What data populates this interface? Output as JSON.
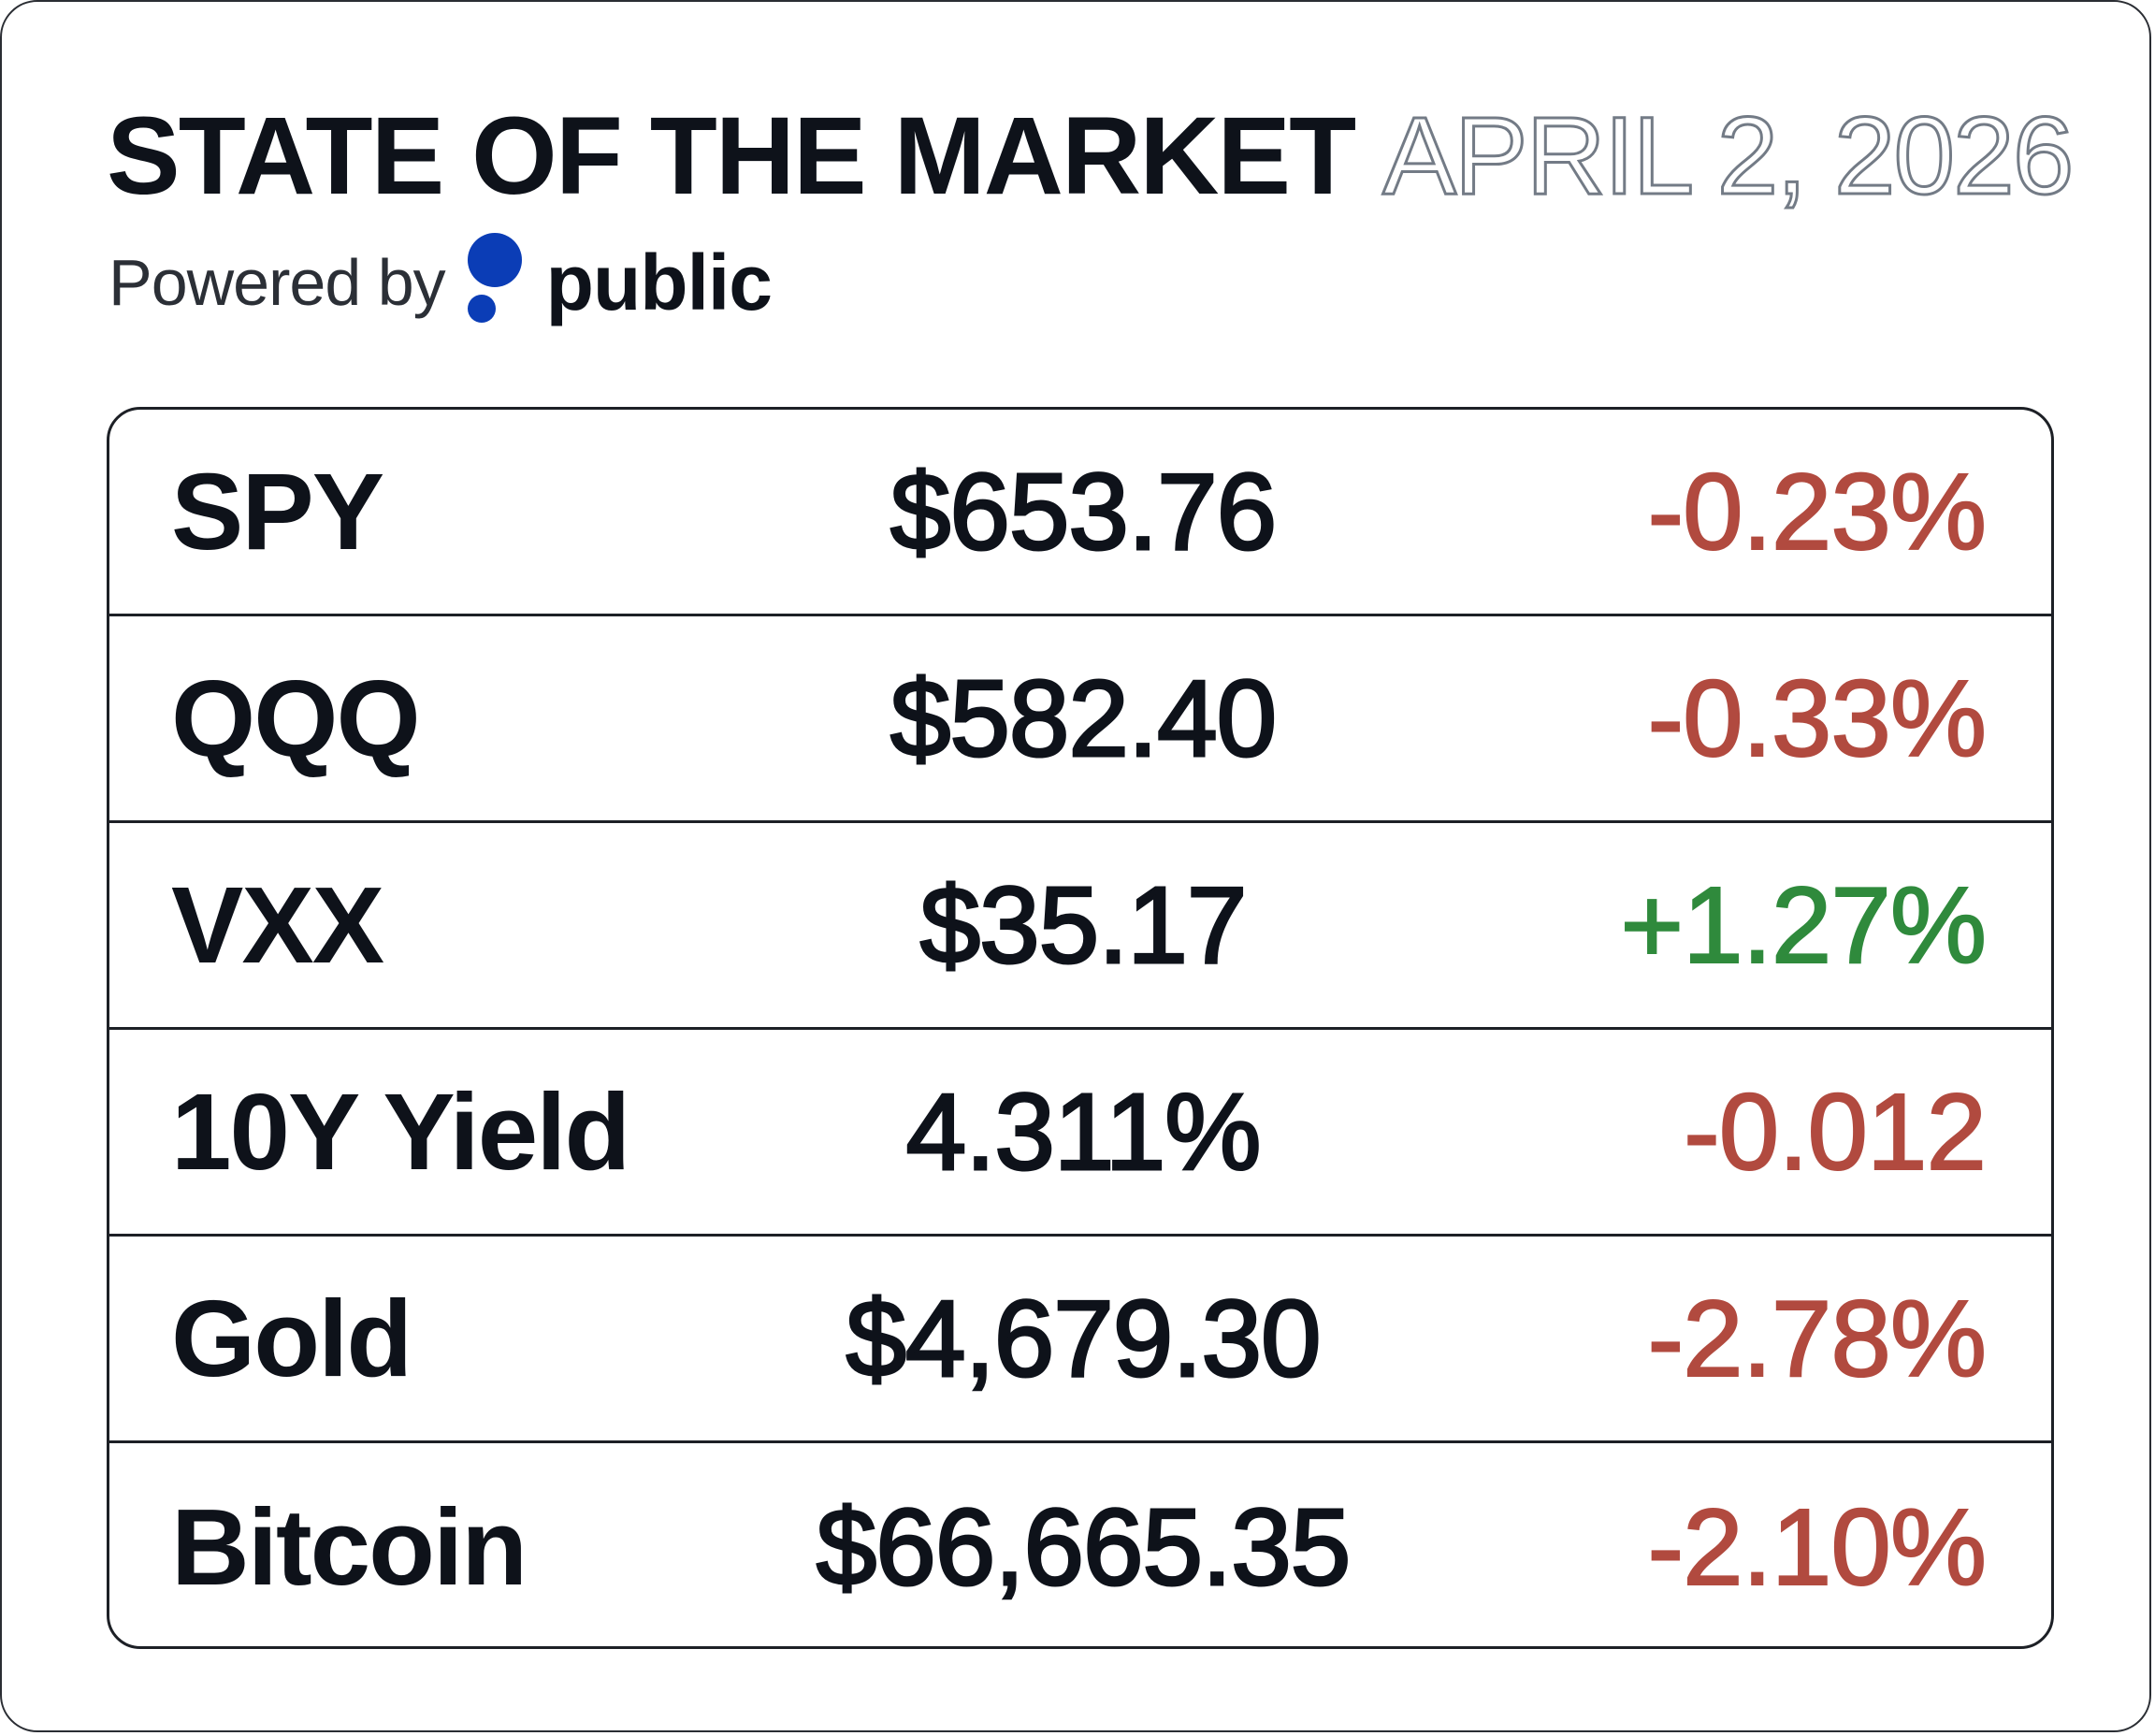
{
  "header": {
    "title": "STATE OF THE MARKET",
    "date": "APRIL 2, 2026",
    "powered_by": "Powered by",
    "brand": "public"
  },
  "colors": {
    "negative": "#b14a3f",
    "positive": "#2f8a3c",
    "brand_blue": "#0b3db6"
  },
  "rows": [
    {
      "name": "SPY",
      "value": "$653.76",
      "change": "-0.23%",
      "direction": "down"
    },
    {
      "name": "QQQ",
      "value": "$582.40",
      "change": "-0.33%",
      "direction": "down"
    },
    {
      "name": "VXX",
      "value": "$35.17",
      "change": "+1.27%",
      "direction": "up"
    },
    {
      "name": "10Y Yield",
      "value": "4.311%",
      "change": "-0.012",
      "direction": "down"
    },
    {
      "name": "Gold",
      "value": "$4,679.30",
      "change": "-2.78%",
      "direction": "down"
    },
    {
      "name": "Bitcoin",
      "value": "$66,665.35",
      "change": "-2.10%",
      "direction": "down"
    }
  ]
}
